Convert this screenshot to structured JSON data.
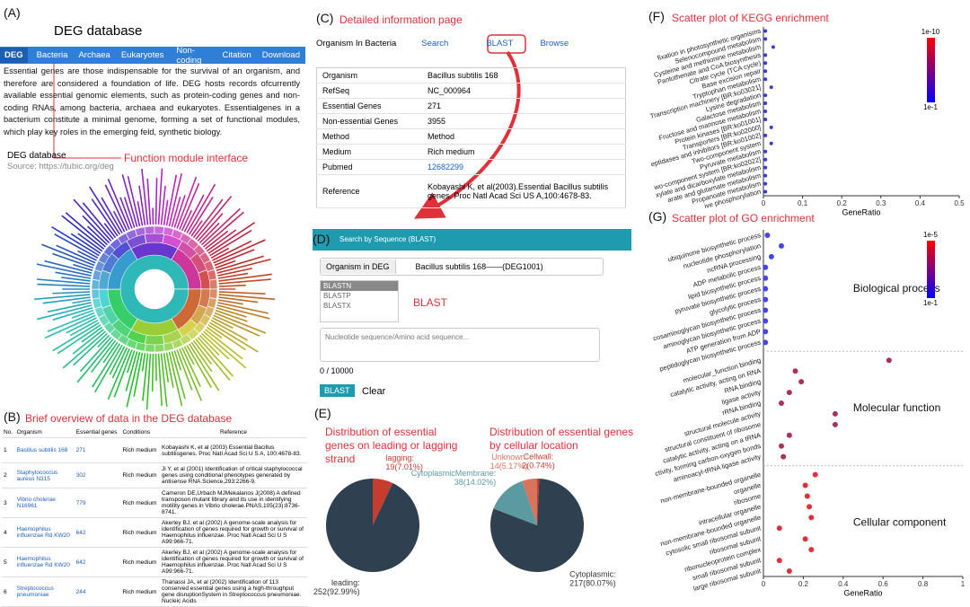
{
  "panelA": {
    "label": "(A)",
    "title": "DEG database",
    "nav": [
      "DEG",
      "Bacteria",
      "Archaea",
      "Eukaryotes",
      "Non-coding",
      "Citation",
      "Download"
    ],
    "description": "Essential genes are those indispensable for the survival of an organism, and therefore are considered a foundation of life. DEG hosts records ofcurrently available essential genomic elements, such as protein-coding genes and non-coding RNAs, among bacteria, archaea and eukaryotes. Essentialgenes in a bacterium constitute a minimal genome, forming a set of functional modules, which play key roles in the emerging feld, synthetic biology.",
    "caption": "DEG database",
    "source": "Source: https://tubic.org/deg",
    "annotation": "Function module interface"
  },
  "panelB": {
    "label": "(B)",
    "title": "Brief overview of data in the DEG database",
    "columns": [
      "No.",
      "Organism",
      "Essential genes",
      "Conditions",
      "Reference"
    ],
    "rows": [
      [
        "1",
        "Bacillus subtilis 168",
        "271",
        "Rich medium",
        "Kobayashi K, et al (2003) Essential Bacillus subtilisgenes. Proc Natl Acad Sci U S A, 100:4678-83."
      ],
      [
        "2",
        "Staphylococcus aureus N315",
        "302",
        "Rich medium",
        "Ji Y, et al (2001) Identification of critical staphylococcal genes using conditional phenotypes generated by antisense RNA.Science,293:2266-9."
      ],
      [
        "3",
        "Vibrio cholerae N16961",
        "779",
        "Rich medium",
        "Cameron DE,Urbach MJMekalanos J(2008) A defined transposon mutant library and its use in identifying motility genes in Vibrio cholerae.PNAS,105(23):8736-8741."
      ],
      [
        "4",
        "Haemophilus influenzae Rd KW20",
        "642",
        "Rich medium",
        "Akerley BJ, et al (2002) A genome-scale analysis for identification of genes required for growth or survival of Haemophilus influenzae. Proc Natl Acad Sci U S A99:966-71."
      ],
      [
        "5",
        "Haemophilus influenzae Rd KW20",
        "642",
        "Rich medium",
        "Akerley BJ, et al (2002) A genome-scale analysis for identification of genes required for growth or survival of Haemophilus influenzae. Proc Natl Acad Sci U S A99:966-71."
      ],
      [
        "6",
        "Streptococcus pneumoniae",
        "244",
        "Rich medium",
        "Thanassi JA, et al (2002) Identification of 113 conserved essential genes using a high-throughput gene disruptionSystem in Streptococcus pneumoniae. Nucleic Acids"
      ]
    ]
  },
  "panelC": {
    "label": "(C)",
    "title": "Detailed information page",
    "tabs": [
      "Organism In Bacteria",
      "Search",
      "BLAST",
      "Browse"
    ],
    "rows": [
      [
        "Organism",
        "Bacillus subtilis 168"
      ],
      [
        "RefSeq",
        "NC_000964"
      ],
      [
        "Essential Genes",
        "271"
      ],
      [
        "Non-essential Genes",
        "3955"
      ],
      [
        "Method",
        "Method"
      ],
      [
        "Medium",
        "Rich medium"
      ],
      [
        "Pubmed",
        "12682299"
      ],
      [
        "Reference",
        "Kobayashi K, et al(2003).Essential Bacillus subtilis genes. Proc Natl Acad Sci US A,100:4678-83."
      ]
    ]
  },
  "panelD": {
    "label": "(D)",
    "header": "Search by Sequence (BLAST)",
    "select_label": "Organism in DEG",
    "select_value": "Bacillus subtilis 168——(DEG1001)",
    "programs": [
      "BLASTN",
      "BLASTP",
      "BLASTX"
    ],
    "annotation": "BLAST",
    "placeholder": "Nucleotide sequence/Amino acid sequence...",
    "counter": "0 / 10000",
    "buttons": [
      "BLAST",
      "Clear"
    ]
  },
  "panelE": {
    "label": "(E)"
  },
  "chart_data": [
    {
      "type": "pie",
      "title": "Distribution of essential genes on leading or lagging strand",
      "categories": [
        "lagging:",
        "leading:"
      ],
      "values": [
        19,
        252
      ],
      "value_labels": [
        "19(7.01%)",
        "252(92.99%)"
      ],
      "colors": [
        "#c63c2f",
        "#2f4050"
      ]
    },
    {
      "type": "pie",
      "title": "Distribution of essential genes by cellular location",
      "categories": [
        "Cellwall:",
        "Cytoplasmic:",
        "CytoplasmicMembrane:",
        "Unknown:"
      ],
      "values": [
        2,
        217,
        38,
        14
      ],
      "value_labels": [
        "2(0.74%)",
        "217(80.07%)",
        "38(14.02%)",
        "14(5.17%)"
      ],
      "colors": [
        "#c63c2f",
        "#2f4050",
        "#5b9aa0",
        "#d9735c"
      ]
    },
    {
      "type": "scatter",
      "panel_label": "(F)",
      "title": "Scatter plot of KEGG enrichment",
      "categories": [
        "fixation in photosynthetic organisms",
        "Selenocompound metabolism",
        "Cysteine and methionine metabolism",
        "Pantothenate and CoA biosynthesis",
        "Citrate cycle (TCA cycle)",
        "Base excision repair",
        "Tryptophan metabolism",
        "Transcription machinery [BR:ko03021]",
        "Lysine degradation",
        "Galactose metabolism",
        "Fructose and mannose metabolism",
        "Protein kinases [BR:ko01001]",
        "Transporters [BR:ko02000]",
        "eptidases and inhibitors [BR:ko01002]",
        "Two-component system",
        "Pyruvate metabolism",
        "wo-component system [BR:ko02022]",
        "xylate and dicarboxylate metabolism",
        "arate and glutamate metabolism",
        "Propanoate metabolism",
        "ive phosphorylation"
      ],
      "values": [
        0.005,
        0.005,
        0.025,
        0.005,
        0.005,
        0.005,
        0.005,
        0.02,
        0.005,
        0.005,
        0.005,
        0.005,
        0.02,
        0.005,
        0.02,
        0.005,
        0.005,
        0.005,
        0.005,
        0.005,
        0.005
      ],
      "color": "#3b3bd6",
      "xlabel": "GeneRatio",
      "xlim": [
        0,
        0.5
      ],
      "xticks": [
        0,
        0.1,
        0.2,
        0.3,
        0.4,
        0.5
      ],
      "colorbar": {
        "labels": [
          "1e-10",
          "1e-1"
        ],
        "colors": [
          "#ff0000",
          "#0000ff"
        ]
      }
    },
    {
      "type": "scatter",
      "panel_label": "(G)",
      "title": "Scatter plot of GO enrichment",
      "series": [
        {
          "name": "Biological process",
          "color": "#4646e0",
          "categories": [
            "ubiquinone biosynthetic process",
            "nucleotide phosphorylation",
            "ncRNA processing",
            "ADP metabolic process",
            "lipid biosynthetic process",
            "pyruvate biosynthetic process",
            "glycolytic process",
            "cosaminoglycan biosynthetic process",
            "aminoglycan biosynthetic process",
            "ATP generation from ADP",
            "peptidoglycan biosynthetic process"
          ],
          "values": [
            0.02,
            0.09,
            0.04,
            0.01,
            0.01,
            0.01,
            0.01,
            0.01,
            0.01,
            0.01,
            0.01
          ]
        },
        {
          "name": "Molecular function",
          "color": "#a8325a",
          "categories": [
            "molecular_function binding",
            "catalytic activity, acting on RNA",
            "RNA binding",
            "ligase activity",
            "rRNA binding",
            "structural molecule activity",
            "structural constituent of ribosome",
            "catalytic activity, acting on a tRNA",
            "ctivity, forming carbon-oxygen bonds",
            "aminoacyl-tRNA ligase activity"
          ],
          "values": [
            0.63,
            0.16,
            0.19,
            0.13,
            0.09,
            0.36,
            0.36,
            0.13,
            0.09,
            0.1
          ]
        },
        {
          "name": "Cellular component",
          "color": "#e0303a",
          "categories": [
            "non-membrane-bounded organelle",
            "organelle",
            "ribosome",
            "intracellular organelle",
            "non-membrane-bounded organelle",
            "cytosolic small ribosomal subunit",
            "ribosomal subunit",
            "ribonucleoprotein complex",
            "small ribosomal subunit",
            "large ribosomal subunit"
          ],
          "values": [
            0.26,
            0.21,
            0.22,
            0.23,
            0.24,
            0.08,
            0.21,
            0.24,
            0.08,
            0.13
          ]
        }
      ],
      "xlabel": "GeneRatio",
      "xlim": [
        0,
        1
      ],
      "xticks": [
        0,
        0.2,
        0.4,
        0.6,
        0.8,
        1
      ],
      "colorbar": {
        "labels": [
          "1e-5",
          "1e-1"
        ],
        "colors": [
          "#ff0000",
          "#0000ff"
        ]
      }
    }
  ]
}
